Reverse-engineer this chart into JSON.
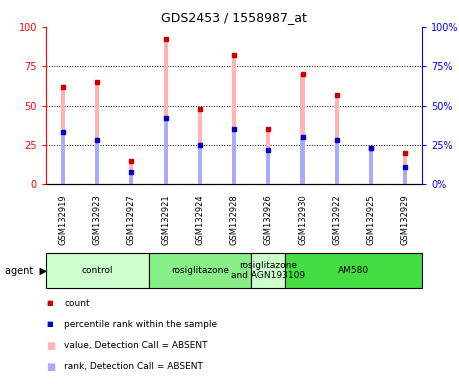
{
  "title": "GDS2453 / 1558987_at",
  "samples": [
    "GSM132919",
    "GSM132923",
    "GSM132927",
    "GSM132921",
    "GSM132924",
    "GSM132928",
    "GSM132926",
    "GSM132930",
    "GSM132922",
    "GSM132925",
    "GSM132929"
  ],
  "pink_bars": [
    62,
    65,
    15,
    92,
    48,
    82,
    35,
    70,
    57,
    23,
    20
  ],
  "blue_bars": [
    33,
    28,
    8,
    42,
    25,
    35,
    22,
    30,
    28,
    23,
    11
  ],
  "agents": [
    {
      "label": "control",
      "span": [
        0,
        3
      ],
      "color": "#ccffcc"
    },
    {
      "label": "rosiglitazone",
      "span": [
        3,
        6
      ],
      "color": "#88ee88"
    },
    {
      "label": "rosiglitazone\nand AGN193109",
      "span": [
        6,
        7
      ],
      "color": "#ccffcc"
    },
    {
      "label": "AM580",
      "span": [
        7,
        11
      ],
      "color": "#44dd44"
    }
  ],
  "ylim": [
    0,
    100
  ],
  "yticks": [
    0,
    25,
    50,
    75,
    100
  ],
  "bar_width": 0.12,
  "pink_color": "#ffb3b3",
  "blue_color": "#aaaaff",
  "red_dot_color": "#cc0000",
  "blue_dot_color": "#0000cc",
  "gray_bg": "#d0d0d0",
  "agent_arrow": "▶"
}
